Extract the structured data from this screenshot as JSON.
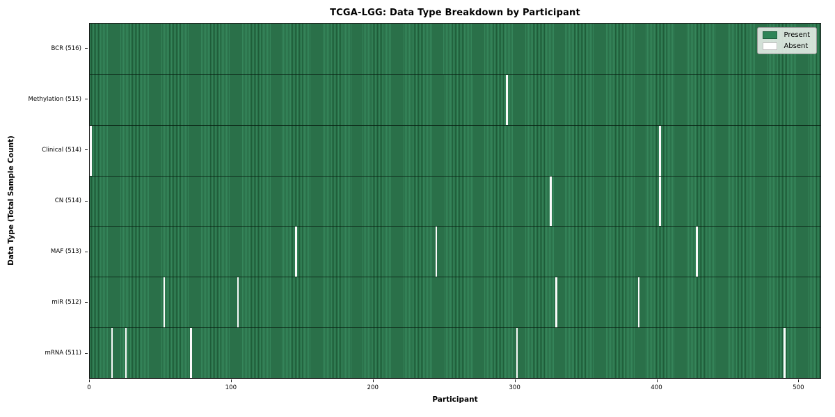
{
  "chart_data": {
    "type": "heatmap",
    "title": "TCGA-LGG: Data Type Breakdown by Participant",
    "xlabel": "Participant",
    "ylabel": "Data Type (Total Sample Count)",
    "n_participants": 516,
    "x_range": [
      0,
      516
    ],
    "x_ticks": [
      0,
      100,
      200,
      300,
      400,
      500
    ],
    "grid": false,
    "legend_position": "upper right",
    "legend": [
      {
        "label": "Present",
        "color": "#2e8457"
      },
      {
        "label": "Absent",
        "color": "#ffffff"
      }
    ],
    "colors": {
      "present_fill": "#35855a",
      "present_edge": "#1e5c38",
      "absent": "#fafafa",
      "row_separator": "#12301e",
      "legend_background": "#eaf0ea"
    },
    "rows": [
      {
        "label": "BCR",
        "total": 516,
        "tick_label": "BCR (516)",
        "absent_participants": []
      },
      {
        "label": "Methylation",
        "total": 515,
        "tick_label": "Methylation (515)",
        "absent_participants": [
          294
        ]
      },
      {
        "label": "Clinical",
        "total": 514,
        "tick_label": "Clinical (514)",
        "absent_participants": [
          0,
          402
        ]
      },
      {
        "label": "CN",
        "total": 514,
        "tick_label": "CN (514)",
        "absent_participants": [
          325,
          402
        ]
      },
      {
        "label": "MAF",
        "total": 513,
        "tick_label": "MAF (513)",
        "absent_participants": [
          145,
          244,
          428
        ]
      },
      {
        "label": "miR",
        "total": 512,
        "tick_label": "miR (512)",
        "absent_participants": [
          52,
          104,
          329,
          387
        ]
      },
      {
        "label": "mRNA",
        "total": 511,
        "tick_label": "mRNA (511)",
        "absent_participants": [
          15,
          25,
          71,
          301,
          490
        ]
      }
    ]
  }
}
